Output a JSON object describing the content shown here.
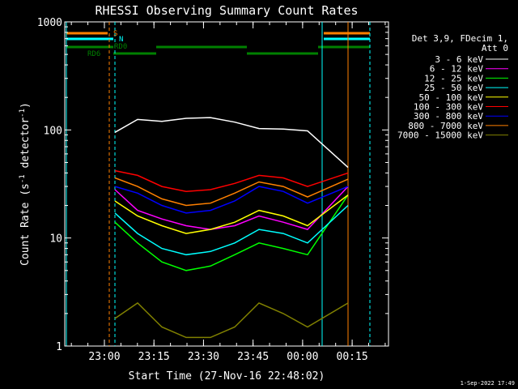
{
  "chart_data": {
    "type": "line",
    "title": "RHESSI Observing Summary Count Rates",
    "xlabel": "Start Time (27-Nov-16 22:48:02)",
    "ylabel": "Count Rate (s-1 detector-1)",
    "ylabel_parts": {
      "main": "Count Rate (s",
      "exp1": "-1",
      "mid": " detector",
      "exp2": "-1",
      "end": ")"
    },
    "yscale": "log",
    "ylim": [
      1,
      1000
    ],
    "xlim": [
      "22:48",
      "00:26"
    ],
    "y_ticks": [
      {
        "value": 1,
        "label": "1"
      },
      {
        "value": 10,
        "label": "10"
      },
      {
        "value": 100,
        "label": "100"
      },
      {
        "value": 1000,
        "label": "1000"
      }
    ],
    "x_ticks": [
      "23:00",
      "23:15",
      "23:30",
      "23:45",
      "00:00",
      "00:15"
    ],
    "timestamp": "1-Sep-2022 17:49",
    "legend": {
      "header": [
        "Det 3,9, FDecim 1,",
        "Att 0"
      ],
      "placement": "right"
    },
    "series": [
      {
        "name": "3 - 6 keV",
        "color": "#ffffff",
        "values": [
          95,
          125,
          120,
          128,
          130,
          118,
          103,
          102,
          98,
          45
        ]
      },
      {
        "name": "6 - 12 keV",
        "color": "#ff00ff",
        "values": [
          28,
          18,
          15,
          13,
          12,
          13,
          16,
          14,
          12,
          30
        ]
      },
      {
        "name": "12 - 25 keV",
        "color": "#00ff00",
        "values": [
          14,
          9,
          6,
          5,
          5.5,
          7,
          9,
          8,
          7,
          25
        ]
      },
      {
        "name": "25 - 50 keV",
        "color": "#00ffff",
        "values": [
          17,
          11,
          8,
          7,
          7.5,
          9,
          12,
          11,
          9,
          20
        ]
      },
      {
        "name": "50 - 100 keV",
        "color": "#ffff00",
        "values": [
          22,
          16,
          13,
          11,
          12,
          14,
          18,
          16,
          13,
          25
        ]
      },
      {
        "name": "100 - 300 keV",
        "color": "#ff0000",
        "values": [
          42,
          38,
          30,
          27,
          28,
          32,
          38,
          36,
          30,
          40
        ]
      },
      {
        "name": "300 - 800 keV",
        "color": "#0000ff",
        "values": [
          30,
          26,
          20,
          17,
          18,
          22,
          30,
          27,
          21,
          30
        ]
      },
      {
        "name": "800 - 7000 keV",
        "color": "#ff8000",
        "values": [
          36,
          30,
          23,
          20,
          21,
          26,
          33,
          30,
          24,
          35
        ]
      },
      {
        "name": "7000 - 15000 keV",
        "color": "#808000",
        "values": [
          1.8,
          2.5,
          1.5,
          1.2,
          1.2,
          1.5,
          2.5,
          2.0,
          1.5,
          2.5
        ]
      }
    ],
    "segment_labels": [
      "RD6",
      "RD0",
      "S",
      "N"
    ],
    "annotation_colors": {
      "rd": "#008000",
      "s": "#ff8000",
      "n": "#00ffff"
    }
  }
}
